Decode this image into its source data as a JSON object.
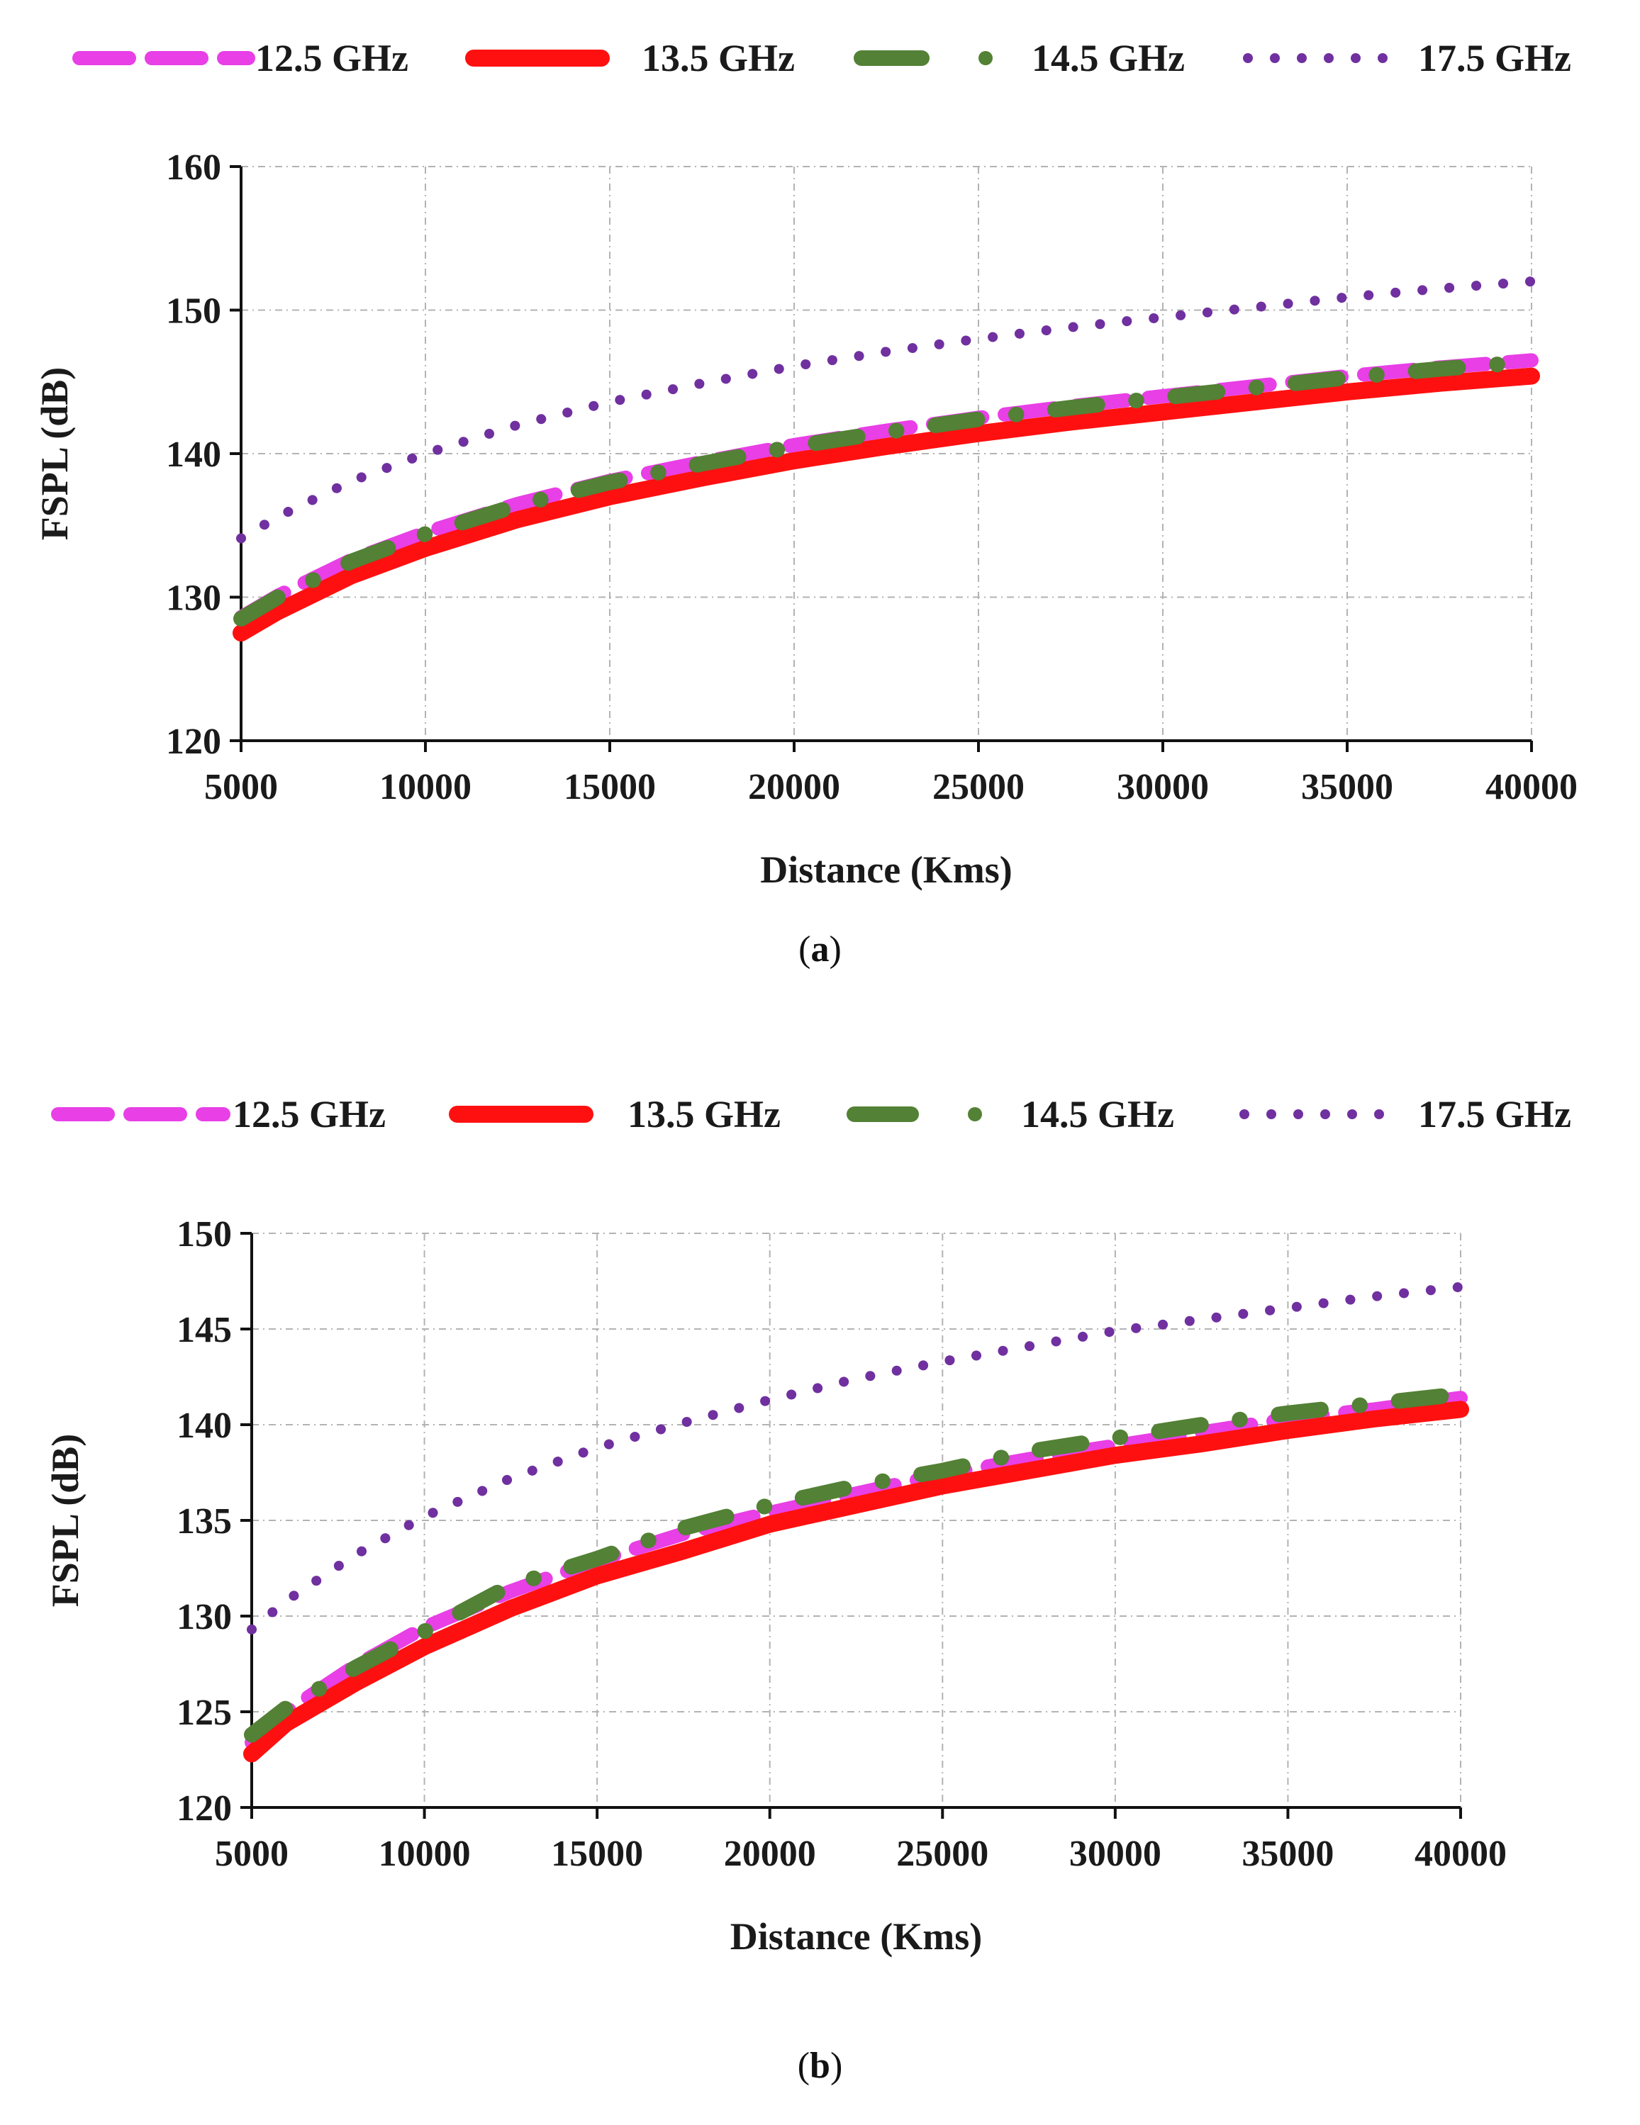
{
  "chart_data": [
    {
      "type": "line",
      "panel": "(a)",
      "panel_letter": "a",
      "title": "",
      "xlabel": "Distance (Kms)",
      "ylabel": "FSPL (dB)",
      "xlim": [
        5000,
        40000
      ],
      "ylim": [
        120,
        160
      ],
      "xticks": [
        "5000",
        "10000",
        "15000",
        "20000",
        "25000",
        "30000",
        "35000",
        "40000"
      ],
      "yticks": [
        "120",
        "130",
        "140",
        "150",
        "160"
      ],
      "grid": true,
      "legend_position": "top",
      "x": [
        5000,
        6000,
        8000,
        10000,
        12500,
        15000,
        17500,
        20000,
        22500,
        25000,
        27500,
        30000,
        32500,
        35000,
        37500,
        40000
      ],
      "series": [
        {
          "name": "12.5 GHz",
          "color": "#e83fe6",
          "style": "dashed",
          "values": [
            128.6,
            130.1,
            132.6,
            134.5,
            136.5,
            138.1,
            139.4,
            140.6,
            141.6,
            142.5,
            143.3,
            144.0,
            144.7,
            145.4,
            146.0,
            146.5
          ]
        },
        {
          "name": "13.5 GHz",
          "color": "#ff1010",
          "style": "solid",
          "values": [
            127.5,
            129.0,
            131.5,
            133.4,
            135.4,
            137.0,
            138.3,
            139.5,
            140.5,
            141.4,
            142.2,
            142.9,
            143.6,
            144.3,
            144.9,
            145.4
          ]
        },
        {
          "name": "14.5 GHz",
          "color": "#538135",
          "style": "dash-dot",
          "values": [
            128.5,
            130.0,
            132.5,
            134.4,
            136.4,
            138.0,
            139.3,
            140.5,
            141.5,
            142.4,
            143.2,
            143.9,
            144.6,
            145.3,
            145.9,
            146.4
          ]
        },
        {
          "name": "17.5 GHz",
          "color": "#7030a0",
          "style": "dotted",
          "values": [
            134.1,
            135.6,
            138.1,
            140.0,
            142.0,
            143.6,
            144.9,
            146.1,
            147.1,
            148.0,
            148.8,
            149.5,
            150.2,
            150.9,
            151.5,
            152.0
          ]
        }
      ]
    },
    {
      "type": "line",
      "panel": "(b)",
      "panel_letter": "b",
      "title": "",
      "xlabel": "Distance (Kms)",
      "ylabel": "FSPL (dB)",
      "xlim": [
        5000,
        40000
      ],
      "ylim": [
        120,
        150
      ],
      "xticks": [
        "5000",
        "10000",
        "15000",
        "20000",
        "25000",
        "30000",
        "35000",
        "40000"
      ],
      "yticks": [
        "120",
        "125",
        "130",
        "135",
        "140",
        "145",
        "150"
      ],
      "grid": true,
      "legend_position": "top",
      "x": [
        5000,
        6000,
        8000,
        10000,
        12500,
        15000,
        17500,
        20000,
        22500,
        25000,
        27500,
        30000,
        32500,
        35000,
        37500,
        40000
      ],
      "series": [
        {
          "name": "12.5 GHz",
          "color": "#e83fe6",
          "style": "dashed",
          "values": [
            123.4,
            125.0,
            127.4,
            129.4,
            131.3,
            132.9,
            134.3,
            135.4,
            136.4,
            137.4,
            138.2,
            138.9,
            139.6,
            140.3,
            140.8,
            141.4
          ]
        },
        {
          "name": "13.5 GHz",
          "color": "#ff1010",
          "style": "solid",
          "values": [
            122.8,
            124.4,
            126.5,
            128.4,
            130.4,
            132.1,
            133.4,
            134.8,
            135.8,
            136.8,
            137.6,
            138.4,
            139.0,
            139.7,
            140.3,
            140.8
          ]
        },
        {
          "name": "14.5 GHz",
          "color": "#538135",
          "style": "dash-dot",
          "values": [
            123.8,
            125.2,
            127.3,
            129.2,
            131.6,
            133.0,
            134.6,
            135.8,
            136.8,
            137.6,
            138.6,
            139.3,
            140.0,
            140.6,
            141.1,
            141.6
          ]
        },
        {
          "name": "17.5 GHz",
          "color": "#7030a0",
          "style": "dotted",
          "values": [
            129.3,
            130.8,
            133.2,
            135.2,
            137.2,
            138.8,
            140.1,
            141.3,
            142.4,
            143.3,
            144.1,
            144.9,
            145.5,
            146.1,
            146.7,
            147.2
          ]
        }
      ]
    }
  ]
}
